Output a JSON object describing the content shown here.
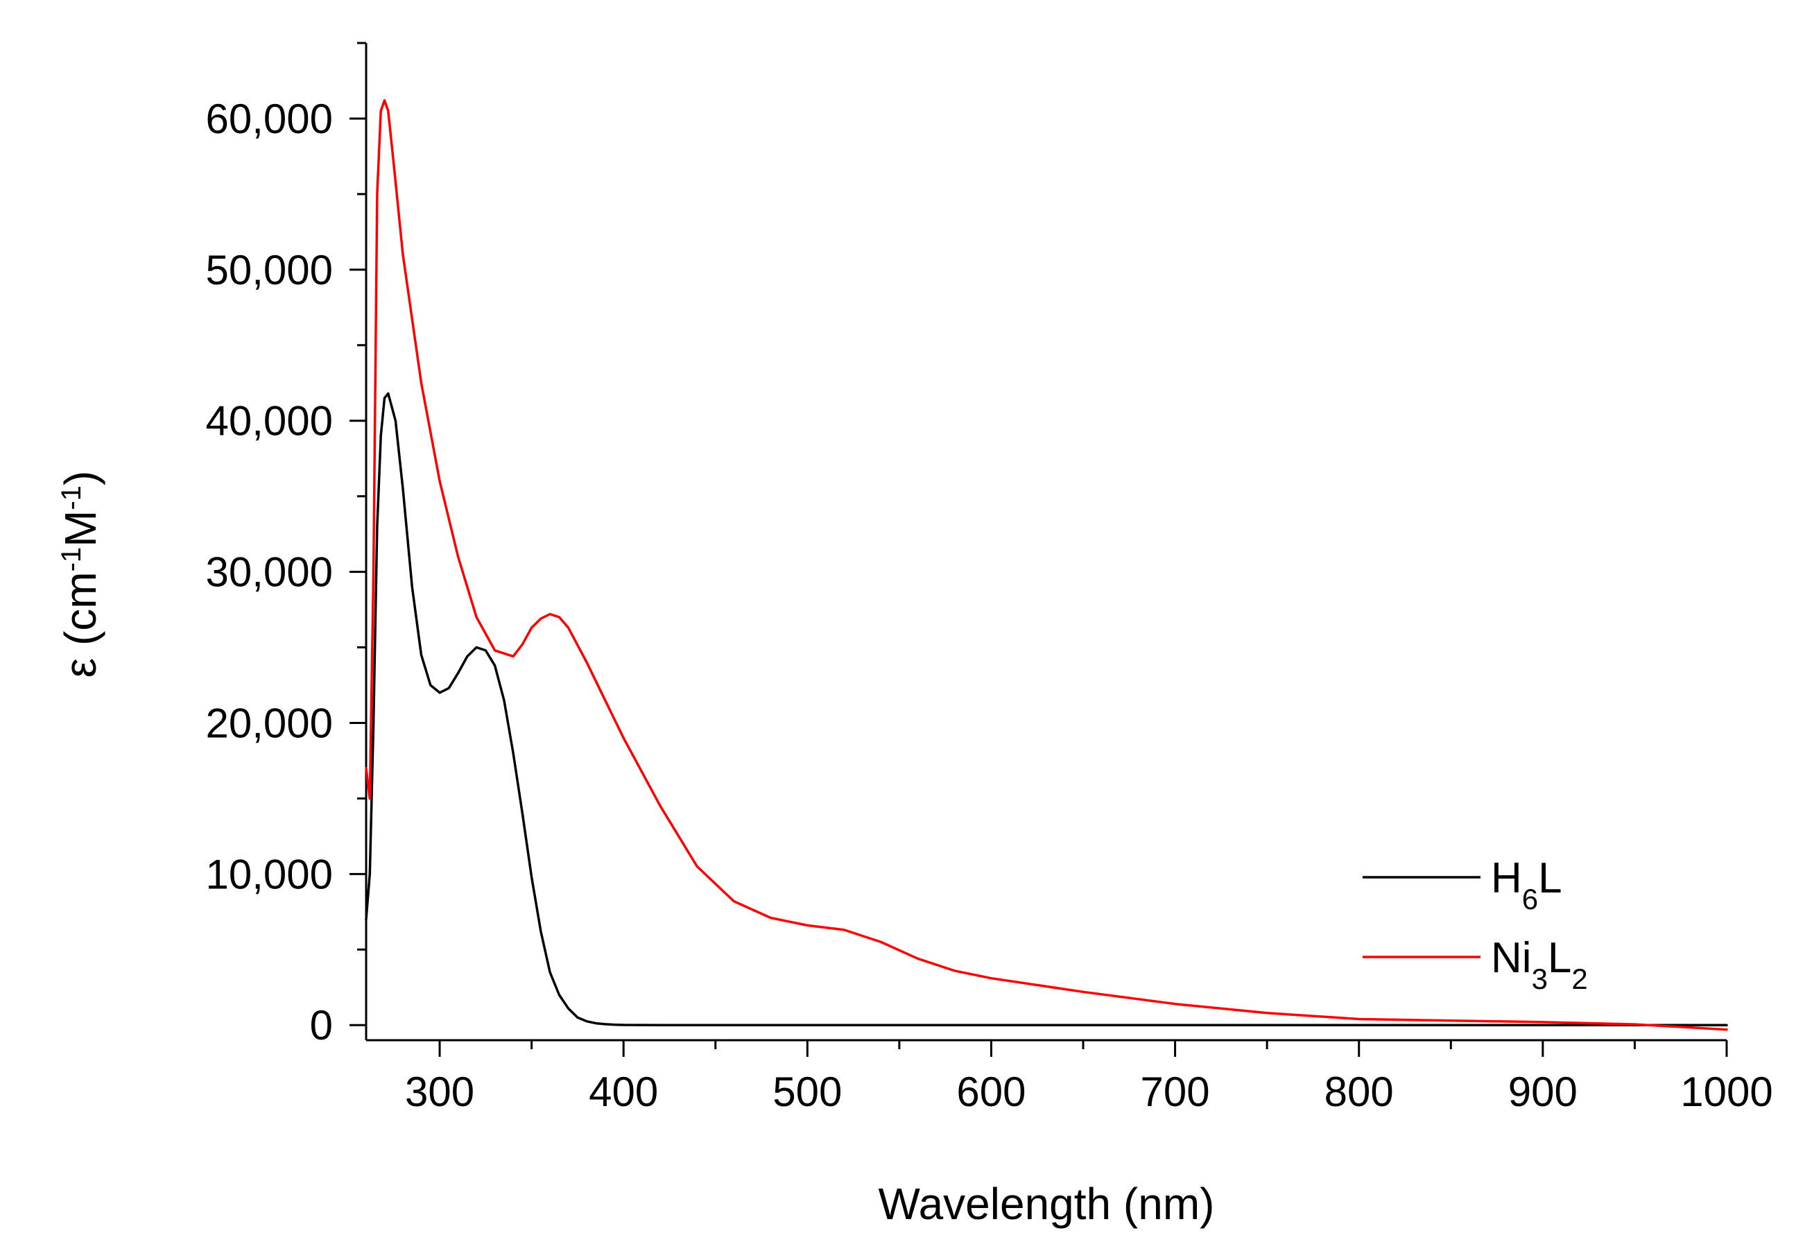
{
  "chart_data": {
    "type": "line",
    "title": "",
    "xlabel": "Wavelength (nm)",
    "ylabel": {
      "prefix": "ε (cm",
      "sup1": "-1",
      "mid": "M",
      "sup2": "-1",
      "suffix": ")"
    },
    "xlim": [
      260,
      1000
    ],
    "ylim": [
      -1000,
      65000
    ],
    "x_ticks": [
      300,
      400,
      500,
      600,
      700,
      800,
      900,
      1000
    ],
    "x_tick_labels": [
      "300",
      "400",
      "500",
      "600",
      "700",
      "800",
      "900",
      "1000"
    ],
    "y_ticks": [
      0,
      10000,
      20000,
      30000,
      40000,
      50000,
      60000
    ],
    "y_tick_labels": [
      "0",
      "10,000",
      "20,000",
      "30,000",
      "40,000",
      "50,000",
      "60,000"
    ],
    "grid": false,
    "legend_position": "bottom-right",
    "series": [
      {
        "name": "H6L",
        "label": {
          "base1": "H",
          "sub1": "6",
          "base2": "L",
          "sub2": ""
        },
        "color": "#000000",
        "x": [
          260,
          262,
          264,
          266,
          268,
          270,
          272,
          276,
          280,
          285,
          290,
          295,
          300,
          305,
          310,
          315,
          320,
          325,
          330,
          335,
          340,
          345,
          350,
          355,
          360,
          365,
          370,
          375,
          380,
          385,
          390,
          395,
          400,
          420,
          450,
          500,
          600,
          700,
          800,
          900,
          1000
        ],
        "y": [
          7000,
          10000,
          20000,
          33000,
          39000,
          41500,
          41800,
          40000,
          35500,
          29000,
          24500,
          22500,
          22000,
          22300,
          23300,
          24400,
          25000,
          24800,
          23800,
          21500,
          18000,
          14000,
          9800,
          6200,
          3500,
          2000,
          1100,
          500,
          250,
          120,
          60,
          30,
          10,
          0,
          0,
          0,
          0,
          0,
          0,
          0,
          0
        ]
      },
      {
        "name": "Ni3L2",
        "label": {
          "base1": "Ni",
          "sub1": "3",
          "base2": "L",
          "sub2": "2"
        },
        "color": "#ff0000",
        "x": [
          260,
          262,
          264,
          266,
          268,
          270,
          272,
          275,
          280,
          290,
          300,
          310,
          320,
          330,
          340,
          345,
          350,
          355,
          360,
          365,
          370,
          380,
          390,
          400,
          420,
          440,
          460,
          480,
          500,
          520,
          540,
          560,
          580,
          600,
          650,
          700,
          750,
          800,
          850,
          900,
          950,
          1000
        ],
        "y": [
          17000,
          15000,
          30000,
          55000,
          60500,
          61200,
          60500,
          57000,
          51000,
          42500,
          36000,
          31000,
          27000,
          24800,
          24400,
          25200,
          26300,
          26900,
          27200,
          27000,
          26300,
          24000,
          21500,
          19000,
          14500,
          10500,
          8200,
          7100,
          6600,
          6300,
          5500,
          4400,
          3600,
          3100,
          2200,
          1400,
          800,
          400,
          300,
          200,
          50,
          -300
        ]
      }
    ]
  }
}
